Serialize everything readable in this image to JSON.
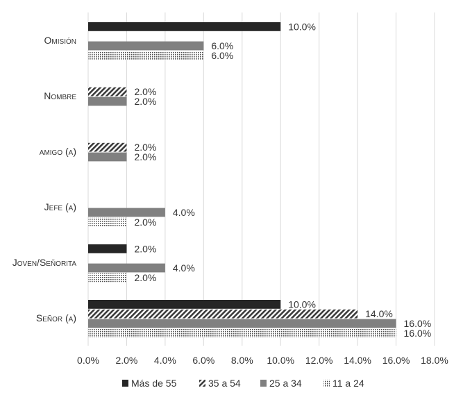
{
  "chart_data": {
    "type": "bar",
    "orientation": "horizontal",
    "categories": [
      "Omisión",
      "Nombre",
      "amigo (a)",
      "Jefe (a)",
      "Joven/Señorita",
      "Señor (a)"
    ],
    "series": [
      {
        "name": "Más de 55",
        "fill": "solid",
        "color": "#262626",
        "values": [
          10.0,
          null,
          null,
          null,
          2.0,
          10.0
        ],
        "labels": [
          "10.0%",
          null,
          null,
          null,
          "2.0%",
          "10.0%"
        ]
      },
      {
        "name": "35 a 54",
        "fill": "diagonal-hatch",
        "color": "#404040",
        "values": [
          null,
          2.0,
          2.0,
          null,
          null,
          14.0
        ],
        "labels": [
          null,
          "2.0%",
          "2.0%",
          null,
          null,
          "14.0%"
        ]
      },
      {
        "name": "25 a 34",
        "fill": "solid",
        "color": "#808080",
        "values": [
          6.0,
          2.0,
          2.0,
          4.0,
          4.0,
          16.0
        ],
        "labels": [
          "6.0%",
          "2.0%",
          "2.0%",
          "4.0%",
          "4.0%",
          "16.0%"
        ]
      },
      {
        "name": "11 a 24",
        "fill": "dotted",
        "color": "#5a5a5a",
        "values": [
          6.0,
          null,
          null,
          2.0,
          2.0,
          16.0
        ],
        "labels": [
          "6.0%",
          null,
          null,
          "2.0%",
          "2.0%",
          "16.0%"
        ]
      }
    ],
    "xlim": [
      0,
      18
    ],
    "xticks": [
      0,
      2,
      4,
      6,
      8,
      10,
      12,
      14,
      16,
      18
    ],
    "xtick_labels": [
      "0.0%",
      "2.0%",
      "4.0%",
      "6.0%",
      "8.0%",
      "10.0%",
      "12.0%",
      "14.0%",
      "16.0%",
      "18.0%"
    ],
    "title": "",
    "xlabel": "",
    "ylabel": "",
    "grid": "vertical",
    "legend": "bottom"
  }
}
